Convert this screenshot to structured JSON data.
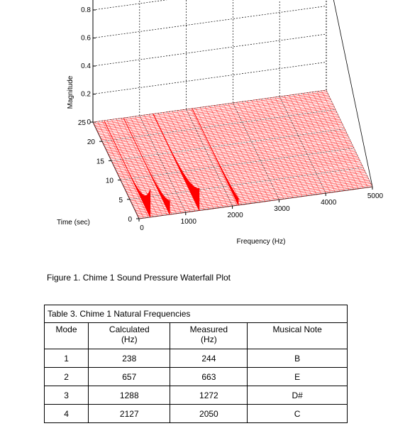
{
  "chart_data": {
    "type": "waterfall",
    "title": "",
    "xlabel": "Frequency (Hz)",
    "ylabel": "Time (sec)",
    "zlabel": "Magnitude",
    "x_ticks": [
      "0",
      "1000",
      "2000",
      "3000",
      "4000",
      "5000"
    ],
    "y_ticks": [
      "0",
      "5",
      "10",
      "15",
      "20",
      "25"
    ],
    "z_ticks": [
      "0",
      "0.2",
      "0.4",
      "0.6",
      "0.8"
    ],
    "xlim": [
      0,
      5000
    ],
    "ylim": [
      0,
      25
    ],
    "zlim": [
      0,
      0.8
    ],
    "grid": true,
    "line_color": "#ff0000",
    "peaks": [
      {
        "frequency": 238,
        "max_magnitude": 0.2
      },
      {
        "frequency": 657,
        "max_magnitude": 0.1
      },
      {
        "frequency": 1288,
        "max_magnitude": 0.16
      },
      {
        "frequency": 2127,
        "max_magnitude": 0.05
      }
    ]
  },
  "figure_caption": "Figure 1.  Chime 1 Sound Pressure Waterfall Plot",
  "table": {
    "title": "Table 3.  Chime 1  Natural Frequencies",
    "headers": [
      {
        "line1": "Mode",
        "line2": ""
      },
      {
        "line1": "Calculated",
        "line2": "(Hz)"
      },
      {
        "line1": "Measured",
        "line2": "(Hz)"
      },
      {
        "line1": "Musical Note",
        "line2": ""
      }
    ],
    "rows": [
      [
        "1",
        "238",
        "244",
        "B"
      ],
      [
        "2",
        "657",
        "663",
        "E"
      ],
      [
        "3",
        "1288",
        "1272",
        "D#"
      ],
      [
        "4",
        "2127",
        "2050",
        "C"
      ]
    ]
  }
}
